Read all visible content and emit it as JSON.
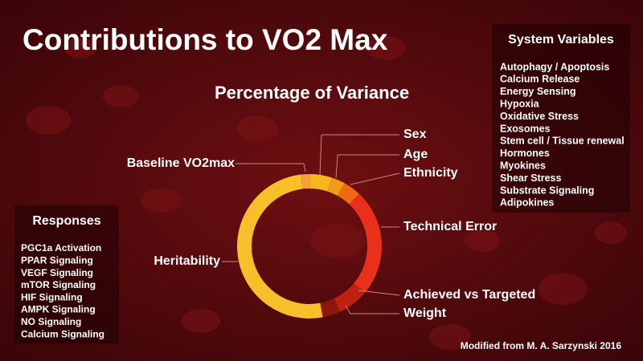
{
  "chart_data": {
    "type": "donut",
    "title": "Contributions to VO2 Max",
    "subtitle": "Percentage of Variance",
    "categories": [
      "Baseline VO2max",
      "Sex",
      "Age",
      "Ethnicity",
      "Technical Error",
      "Achieved vs Targeted",
      "Weight",
      "Heritability"
    ],
    "values": [
      2,
      5,
      3,
      4,
      24,
      7,
      4,
      51
    ],
    "colors": [
      "#f5a13a",
      "#f7b51e",
      "#f39a1a",
      "#f06a14",
      "#e8301a",
      "#c0200f",
      "#8e160b",
      "#f7c02a"
    ]
  },
  "system_variables": {
    "title": "System Variables",
    "items": [
      "Autophagy / Apoptosis",
      "Calcium Release",
      "Energy Sensing",
      "Hypoxia",
      "Oxidative Stress",
      "Exosomes",
      "Stem cell / Tissue renewal",
      "Hormones",
      "Myokines",
      "Shear Stress",
      "Substrate Signaling",
      "Adipokines"
    ]
  },
  "responses": {
    "title": "Responses",
    "items": [
      "PGC1a Activation",
      "PPAR Signaling",
      "VEGF Signaling",
      "mTOR Signaling",
      "HIF Signaling",
      "AMPK Signaling",
      "NO Signaling",
      "Calcium Signaling"
    ]
  },
  "credit": "Modified from M. A. Sarzynski 2016"
}
